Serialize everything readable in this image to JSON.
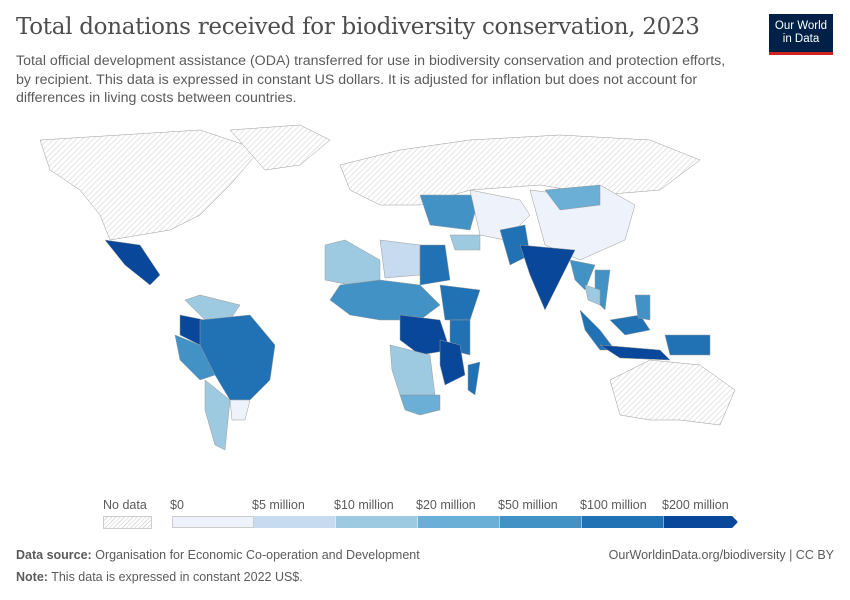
{
  "title": "Total donations received for biodiversity conservation, 2023",
  "subtitle": "Total official development assistance (ODA) transferred for use in biodiversity conservation and protection efforts, by recipient. This data is expressed in constant US dollars. It is adjusted for inflation but does not account for differences in living costs between countries.",
  "logo": {
    "line1": "Our World",
    "line2": "in Data"
  },
  "legend": {
    "no_data_label": "No data",
    "bins": [
      "$0",
      "$5 million",
      "$10 million",
      "$20 million",
      "$50 million",
      "$100 million",
      "$200 million"
    ],
    "colors": [
      "#eef3fb",
      "#c6dbef",
      "#9ecae1",
      "#6baed6",
      "#4292c6",
      "#2171b5",
      "#08479a"
    ]
  },
  "footer": {
    "source_label": "Data source:",
    "source": "Organisation for Economic Co-operation and Development",
    "note_label": "Note:",
    "note": "This data is expressed in constant 2022 US$.",
    "credit": "OurWorldinData.org/biodiversity | CC BY"
  },
  "chart_data": {
    "type": "choropleth",
    "year": 2023,
    "scale": "binned",
    "bin_edges": [
      "$0",
      "$5 million",
      "$10 million",
      "$20 million",
      "$50 million",
      "$100 million",
      "$200 million"
    ],
    "no_data_regions": "hatched"
  }
}
